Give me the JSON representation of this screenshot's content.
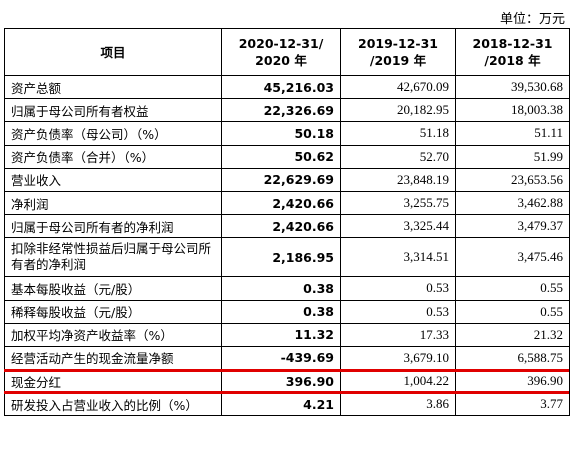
{
  "unit_label": "单位：万元",
  "headers": {
    "item": "项目",
    "col1_line1": "2020-12-31/",
    "col1_line2": "2020 年",
    "col2_line1": "2019-12-31",
    "col2_line2": "/2019 年",
    "col3_line1": "2018-12-31",
    "col3_line2": "/2018 年"
  },
  "rows": [
    {
      "label": "资产总额",
      "v2020": "45,216.03",
      "v2019": "42,670.09",
      "v2018": "39,530.68"
    },
    {
      "label": "归属于母公司所有者权益",
      "v2020": "22,326.69",
      "v2019": "20,182.95",
      "v2018": "18,003.38"
    },
    {
      "label": "资产负债率（母公司）（%）",
      "v2020": "50.18",
      "v2019": "51.18",
      "v2018": "51.11"
    },
    {
      "label": "资产负债率（合并）（%）",
      "v2020": "50.62",
      "v2019": "52.70",
      "v2018": "51.99"
    },
    {
      "label": "营业收入",
      "v2020": "22,629.69",
      "v2019": "23,848.19",
      "v2018": "23,653.56"
    },
    {
      "label": "净利润",
      "v2020": "2,420.66",
      "v2019": "3,255.75",
      "v2018": "3,462.88"
    },
    {
      "label": "归属于母公司所有者的净利润",
      "v2020": "2,420.66",
      "v2019": "3,325.44",
      "v2018": "3,479.37"
    },
    {
      "label": "扣除非经常性损益后归属于母公司所有者的净利润",
      "v2020": "2,186.95",
      "v2019": "3,314.51",
      "v2018": "3,475.46"
    },
    {
      "label": "基本每股收益（元/股）",
      "v2020": "0.38",
      "v2019": "0.53",
      "v2018": "0.55"
    },
    {
      "label": "稀释每股收益（元/股）",
      "v2020": "0.38",
      "v2019": "0.53",
      "v2018": "0.55"
    },
    {
      "label": "加权平均净资产收益率（%）",
      "v2020": "11.32",
      "v2019": "17.33",
      "v2018": "21.32"
    },
    {
      "label": "经营活动产生的现金流量净额",
      "v2020": "-439.69",
      "v2019": "3,679.10",
      "v2018": "6,588.75"
    },
    {
      "label": "现金分红",
      "v2020": "396.90",
      "v2019": "1,004.22",
      "v2018": "396.90"
    },
    {
      "label": "研发投入占营业收入的比例（%）",
      "v2020": "4.21",
      "v2019": "3.86",
      "v2018": "3.77"
    }
  ],
  "highlight_color": "#e00000"
}
